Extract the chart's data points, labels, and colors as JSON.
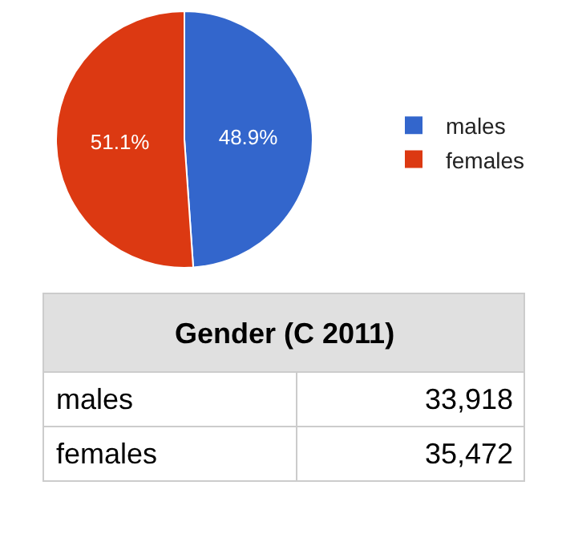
{
  "chart_data": {
    "type": "pie",
    "title": "Gender (C 2011)",
    "categories": [
      "males",
      "females"
    ],
    "values": [
      48.9,
      51.1
    ],
    "value_labels": [
      "48.9%",
      "51.1%"
    ],
    "colors": [
      "#3366cc",
      "#dc3912"
    ],
    "legend": "right",
    "annotations": [
      "males",
      "33,918",
      "females",
      "35,472"
    ]
  }
}
